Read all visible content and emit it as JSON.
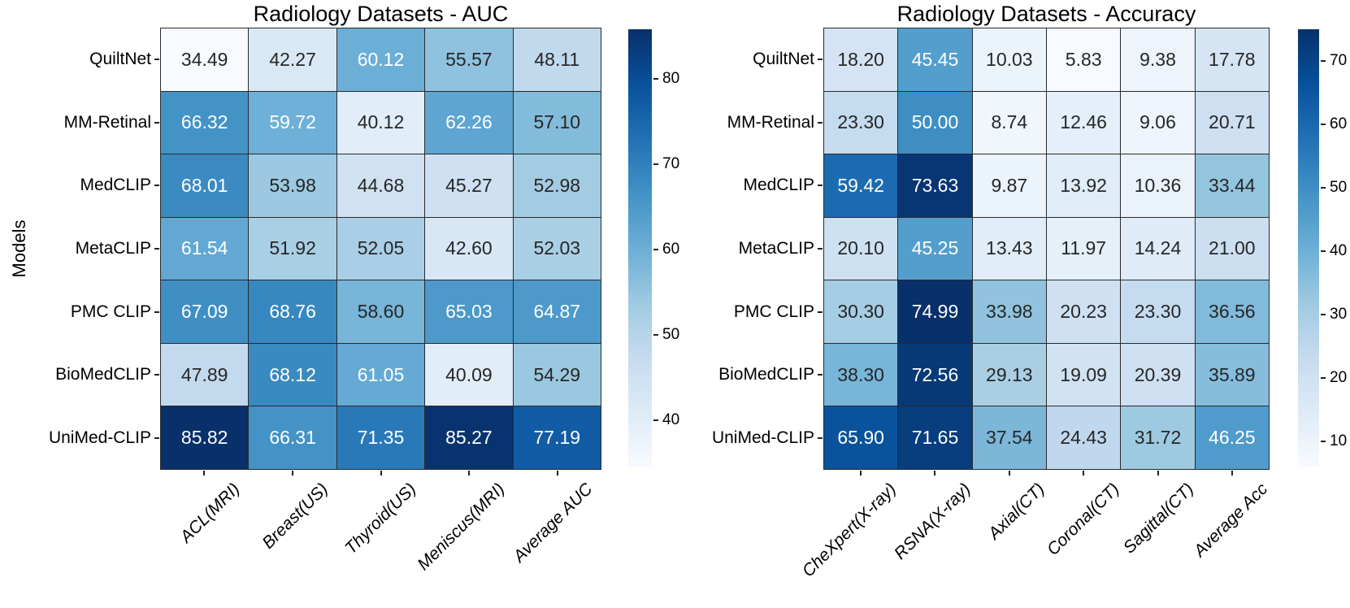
{
  "page": {
    "background": "#ffffff",
    "annot_dark_color": "#262626",
    "annot_light_color": "#ffffff",
    "grid_line_color": "#2a2a2a",
    "tick_color": "#222222"
  },
  "chart_data": [
    {
      "type": "heatmap",
      "id": "auc",
      "title": "Radiology Datasets - AUC",
      "ylabel": "Models",
      "xlabel": "",
      "rows": [
        "QuiltNet",
        "MM-Retinal",
        "MedCLIP",
        "MetaCLIP",
        "PMC CLIP",
        "BioMedCLIP",
        "UniMed-CLIP"
      ],
      "columns": [
        "ACL(MRI)",
        "Breast(US)",
        "Thyroid(US)",
        "Meniscus(MRI)",
        "Average AUC"
      ],
      "values": [
        [
          34.49,
          42.27,
          60.12,
          55.57,
          48.11
        ],
        [
          66.32,
          59.72,
          40.12,
          62.26,
          57.1
        ],
        [
          68.01,
          53.98,
          44.68,
          45.27,
          52.98
        ],
        [
          61.54,
          51.92,
          52.05,
          42.6,
          52.03
        ],
        [
          67.09,
          68.76,
          58.6,
          65.03,
          64.87
        ],
        [
          47.89,
          68.12,
          61.05,
          40.09,
          54.29
        ],
        [
          85.82,
          66.31,
          71.35,
          85.27,
          77.19
        ]
      ],
      "vmin": 34.49,
      "vmax": 85.82,
      "value_format": "2-decimals",
      "colormap": "Blues",
      "colormap_anchors": [
        "#f7fbff",
        "#deebf7",
        "#c6dbef",
        "#9ecae1",
        "#6baed6",
        "#4292c6",
        "#2171b5",
        "#08519c",
        "#08306b"
      ],
      "colorbar_position": "right",
      "colorbar_ticks": [
        40,
        50,
        60,
        70,
        80
      ],
      "grid_lines": true
    },
    {
      "type": "heatmap",
      "id": "accuracy",
      "title": "Radiology Datasets - Accuracy",
      "ylabel": "",
      "xlabel": "",
      "rows": [
        "QuiltNet",
        "MM-Retinal",
        "MedCLIP",
        "MetaCLIP",
        "PMC CLIP",
        "BioMedCLIP",
        "UniMed-CLIP"
      ],
      "columns": [
        "CheXpert(X-ray)",
        "RSNA(X-ray)",
        "Axial(CT)",
        "Coronal(CT)",
        "Sagittal(CT)",
        "Average Acc"
      ],
      "values": [
        [
          18.2,
          45.45,
          10.03,
          5.83,
          9.38,
          17.78
        ],
        [
          23.3,
          50.0,
          8.74,
          12.46,
          9.06,
          20.71
        ],
        [
          59.42,
          73.63,
          9.87,
          13.92,
          10.36,
          33.44
        ],
        [
          20.1,
          45.25,
          13.43,
          11.97,
          14.24,
          21.0
        ],
        [
          30.3,
          74.99,
          33.98,
          20.23,
          23.3,
          36.56
        ],
        [
          38.3,
          72.56,
          29.13,
          19.09,
          20.39,
          35.89
        ],
        [
          65.9,
          71.65,
          37.54,
          24.43,
          31.72,
          46.25
        ]
      ],
      "vmin": 5.83,
      "vmax": 74.99,
      "value_format": "2-decimals",
      "colormap": "Blues",
      "colormap_anchors": [
        "#f7fbff",
        "#deebf7",
        "#c6dbef",
        "#9ecae1",
        "#6baed6",
        "#4292c6",
        "#2171b5",
        "#08519c",
        "#08306b"
      ],
      "colorbar_position": "right",
      "colorbar_ticks": [
        10,
        20,
        30,
        40,
        50,
        60,
        70
      ],
      "grid_lines": true
    }
  ]
}
